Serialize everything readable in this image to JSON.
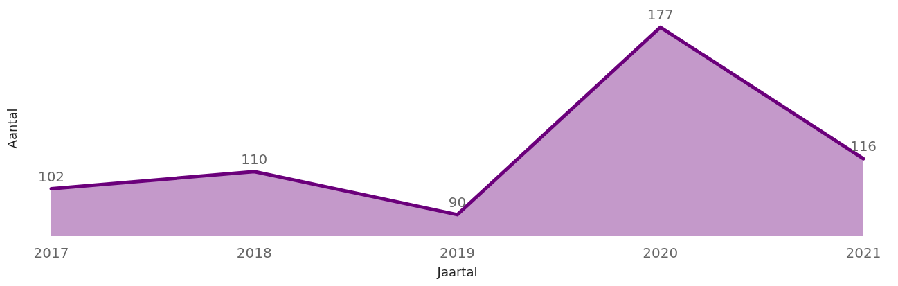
{
  "chart_data": {
    "type": "area",
    "xlabel": "Jaartal",
    "ylabel": "Aantal",
    "categories": [
      "2017",
      "2018",
      "2019",
      "2020",
      "2021"
    ],
    "series": [
      {
        "color": "#6b007b",
        "values": [
          102,
          110,
          90,
          177,
          116
        ]
      }
    ],
    "tick_labels": "x",
    "grid": false,
    "marker": "none",
    "line_style": "solid",
    "data_labels": true
  }
}
